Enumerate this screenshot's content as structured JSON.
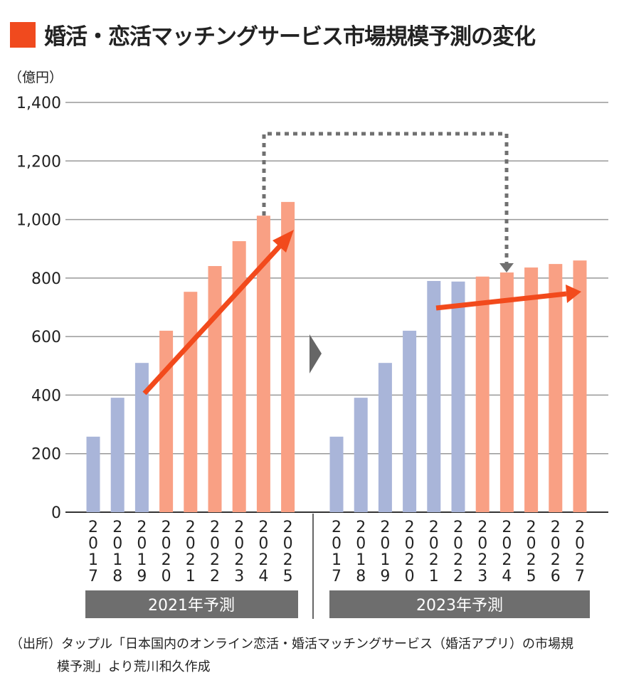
{
  "title": "婚活・恋活マッチングサービス市場規模予測の変化",
  "colors": {
    "accent": "#f04a1e",
    "actual": "#a9b5d9",
    "forecast": "#f9a084",
    "arrow": "#f24a1c",
    "connector": "#707070"
  },
  "chart_data": [
    {
      "type": "bar",
      "group_label": "2021年予測",
      "ylabel": "（億円）",
      "ylim": [
        0,
        1400
      ],
      "yticks": [
        0,
        200,
        400,
        600,
        800,
        1000,
        1200,
        1400
      ],
      "ytick_labels": [
        "0",
        "200",
        "400",
        "600",
        "800",
        "1,000",
        "1,200",
        "1,400"
      ],
      "grid": true,
      "categories": [
        "2017",
        "2018",
        "2019",
        "2020",
        "2021",
        "2022",
        "2023",
        "2024",
        "2025"
      ],
      "values": [
        258,
        391,
        510,
        620,
        753,
        841,
        926,
        1013,
        1060
      ],
      "is_actual": [
        true,
        true,
        true,
        false,
        false,
        false,
        false,
        false,
        false
      ]
    },
    {
      "type": "bar",
      "group_label": "2023年予測",
      "ylim": [
        0,
        1400
      ],
      "grid": true,
      "categories": [
        "2017",
        "2018",
        "2019",
        "2020",
        "2021",
        "2022",
        "2023",
        "2024",
        "2025",
        "2026",
        "2027"
      ],
      "values": [
        258,
        391,
        510,
        620,
        790,
        788,
        805,
        819,
        836,
        848,
        860
      ],
      "is_actual": [
        true,
        true,
        true,
        true,
        true,
        true,
        false,
        false,
        false,
        false,
        false
      ]
    }
  ],
  "source": {
    "line1": "（出所）タップル「日本国内のオンライン恋活・婚活マッチングサービス（婚活アプリ）の市場規",
    "line2": "模予測」より荒川和久作成"
  }
}
